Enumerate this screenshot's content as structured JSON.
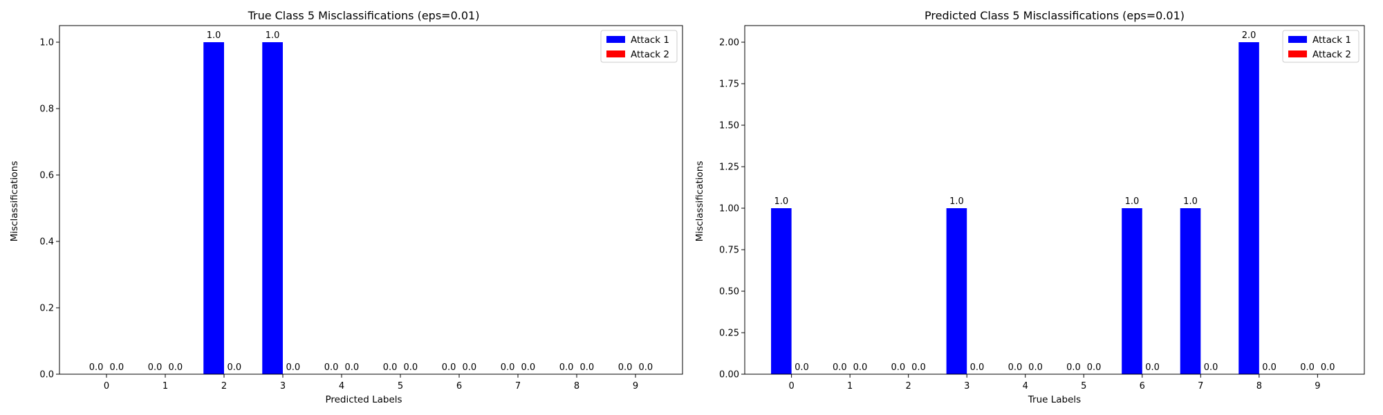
{
  "colors": {
    "attack1": "#0000ff",
    "attack2": "#ff0000",
    "axis": "#000000",
    "legend_border": "#cccccc"
  },
  "chart_data": [
    {
      "type": "bar",
      "title": "True Class 5 Misclassifications (eps=0.01)",
      "xlabel": "Predicted Labels",
      "ylabel": "Misclassifications",
      "categories": [
        "0",
        "1",
        "2",
        "3",
        "4",
        "5",
        "6",
        "7",
        "8",
        "9"
      ],
      "series": [
        {
          "name": "Attack 1",
          "values": [
            0.0,
            0.0,
            1.0,
            1.0,
            0.0,
            0.0,
            0.0,
            0.0,
            0.0,
            0.0
          ]
        },
        {
          "name": "Attack 2",
          "values": [
            0.0,
            0.0,
            0.0,
            0.0,
            0.0,
            0.0,
            0.0,
            0.0,
            0.0,
            0.0
          ]
        }
      ],
      "data_labels": [
        [
          "0.0",
          "0.0",
          "1.0",
          "1.0",
          "0.0",
          "0.0",
          "0.0",
          "0.0",
          "0.0",
          "0.0"
        ],
        [
          "0.0",
          "0.0",
          "0.0",
          "0.0",
          "0.0",
          "0.0",
          "0.0",
          "0.0",
          "0.0",
          "0.0"
        ]
      ],
      "ylim": [
        0,
        1.05
      ],
      "yticks": [
        "0.0",
        "0.2",
        "0.4",
        "0.6",
        "0.8",
        "1.0"
      ],
      "grid": false,
      "legend": "top-right"
    },
    {
      "type": "bar",
      "title": "Predicted Class 5 Misclassifications (eps=0.01)",
      "xlabel": "True Labels",
      "ylabel": "Misclassifications",
      "categories": [
        "0",
        "1",
        "2",
        "3",
        "4",
        "5",
        "6",
        "7",
        "8",
        "9"
      ],
      "series": [
        {
          "name": "Attack 1",
          "values": [
            1.0,
            0.0,
            0.0,
            1.0,
            0.0,
            0.0,
            1.0,
            1.0,
            2.0,
            0.0
          ]
        },
        {
          "name": "Attack 2",
          "values": [
            0.0,
            0.0,
            0.0,
            0.0,
            0.0,
            0.0,
            0.0,
            0.0,
            0.0,
            0.0
          ]
        }
      ],
      "data_labels": [
        [
          "1.0",
          "0.0",
          "0.0",
          "1.0",
          "0.0",
          "0.0",
          "1.0",
          "1.0",
          "2.0",
          "0.0"
        ],
        [
          "0.0",
          "0.0",
          "0.0",
          "0.0",
          "0.0",
          "0.0",
          "0.0",
          "0.0",
          "0.0",
          "0.0"
        ]
      ],
      "ylim": [
        0,
        2.1
      ],
      "yticks": [
        "0.00",
        "0.25",
        "0.50",
        "0.75",
        "1.00",
        "1.25",
        "1.50",
        "1.75",
        "2.00"
      ],
      "grid": false,
      "legend": "top-right"
    }
  ]
}
